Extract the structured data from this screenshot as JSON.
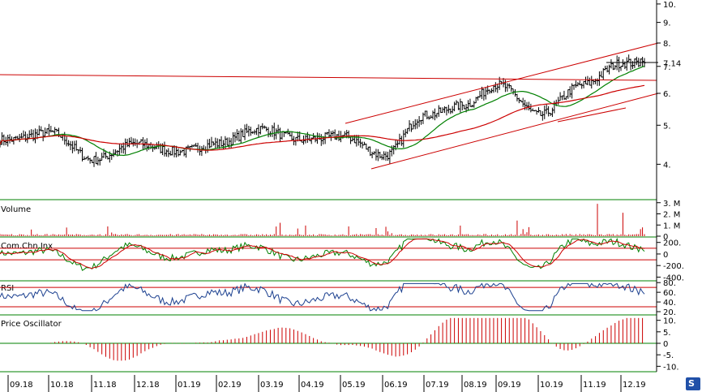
{
  "chart_data": [
    {
      "panel": "price",
      "type": "ohlc",
      "title": "",
      "ylim": [
        3.1,
        10.3
      ],
      "y_scale": "log",
      "y_ticks": [
        4,
        5,
        6,
        7,
        8,
        9,
        10
      ],
      "y_tick_labels": [
        "4.",
        "5.",
        "6.",
        "7.",
        "8.",
        "9.",
        "10."
      ],
      "last_price_label": "7.14",
      "series": [
        {
          "name": "",
          "kind": "moving-average-short",
          "color": "#008000"
        },
        {
          "name": "",
          "kind": "moving-average-long",
          "color": "#cc0000"
        }
      ],
      "key_points": [
        {
          "month": "09.18",
          "close": 4.6
        },
        {
          "month": "10.18",
          "close": 4.8
        },
        {
          "month": "11.18",
          "close": 4.1
        },
        {
          "month": "12.18",
          "close": 4.5
        },
        {
          "month": "01.19",
          "close": 4.3
        },
        {
          "month": "02.19",
          "close": 4.5
        },
        {
          "month": "03.19",
          "close": 4.9
        },
        {
          "month": "04.19",
          "close": 4.6
        },
        {
          "month": "05.19",
          "close": 4.7
        },
        {
          "month": "06.19",
          "close": 4.2
        },
        {
          "month": "07.19",
          "close": 5.3
        },
        {
          "month": "08.19",
          "close": 5.6
        },
        {
          "month": "09.19",
          "close": 6.3
        },
        {
          "month": "10.19",
          "close": 5.3
        },
        {
          "month": "11.19",
          "close": 6.3
        },
        {
          "month": "12.19",
          "close": 7.14
        }
      ],
      "trendlines_color": "#cc0000"
    },
    {
      "panel": "volume",
      "type": "bar",
      "title": "Volume",
      "y_tick_labels": [
        "3. M",
        "2. M",
        "1. M",
        "0"
      ],
      "y_ticks": [
        3,
        2,
        1,
        0
      ],
      "unit": "M",
      "ylim": [
        0,
        3.2
      ],
      "bar_color": "#cc0000"
    },
    {
      "panel": "cci",
      "type": "line",
      "title": "Com.Chn.Inx",
      "y_tick_labels": [
        "200.",
        "0",
        "-200.",
        "-400."
      ],
      "y_ticks": [
        200,
        0,
        -200,
        -400
      ],
      "ylim": [
        -450,
        280
      ],
      "reference_lines": [
        100,
        -100
      ],
      "series": [
        {
          "name": "",
          "color": "#008000"
        },
        {
          "name": "",
          "color": "#cc0000"
        }
      ]
    },
    {
      "panel": "rsi",
      "type": "line",
      "title": "RSI",
      "y_tick_labels": [
        "80.",
        "60.",
        "40.",
        "20."
      ],
      "y_ticks": [
        80,
        60,
        40,
        20
      ],
      "ylim": [
        15,
        82
      ],
      "reference_lines": [
        70,
        30
      ],
      "series": [
        {
          "name": "",
          "color": "#1a3f8f"
        }
      ]
    },
    {
      "panel": "price-oscillator",
      "type": "bar",
      "title": "Price Oscillator",
      "y_tick_labels": [
        "10.",
        "5.",
        "0",
        "-5.",
        "-10."
      ],
      "y_ticks": [
        10,
        5,
        0,
        -5,
        -10
      ],
      "ylim": [
        -12,
        12
      ],
      "bar_color": "#cc0000"
    }
  ],
  "x_axis": {
    "categories": [
      "09.18",
      "10.18",
      "11.18",
      "12.18",
      "01.19",
      "02.19",
      "03.19",
      "04.19",
      "05.19",
      "06.19",
      "07.19",
      "08.19",
      "09.19",
      "10.19",
      "11.19",
      "12.19"
    ]
  },
  "logo": {
    "text": "S",
    "color": "#2050a8"
  }
}
